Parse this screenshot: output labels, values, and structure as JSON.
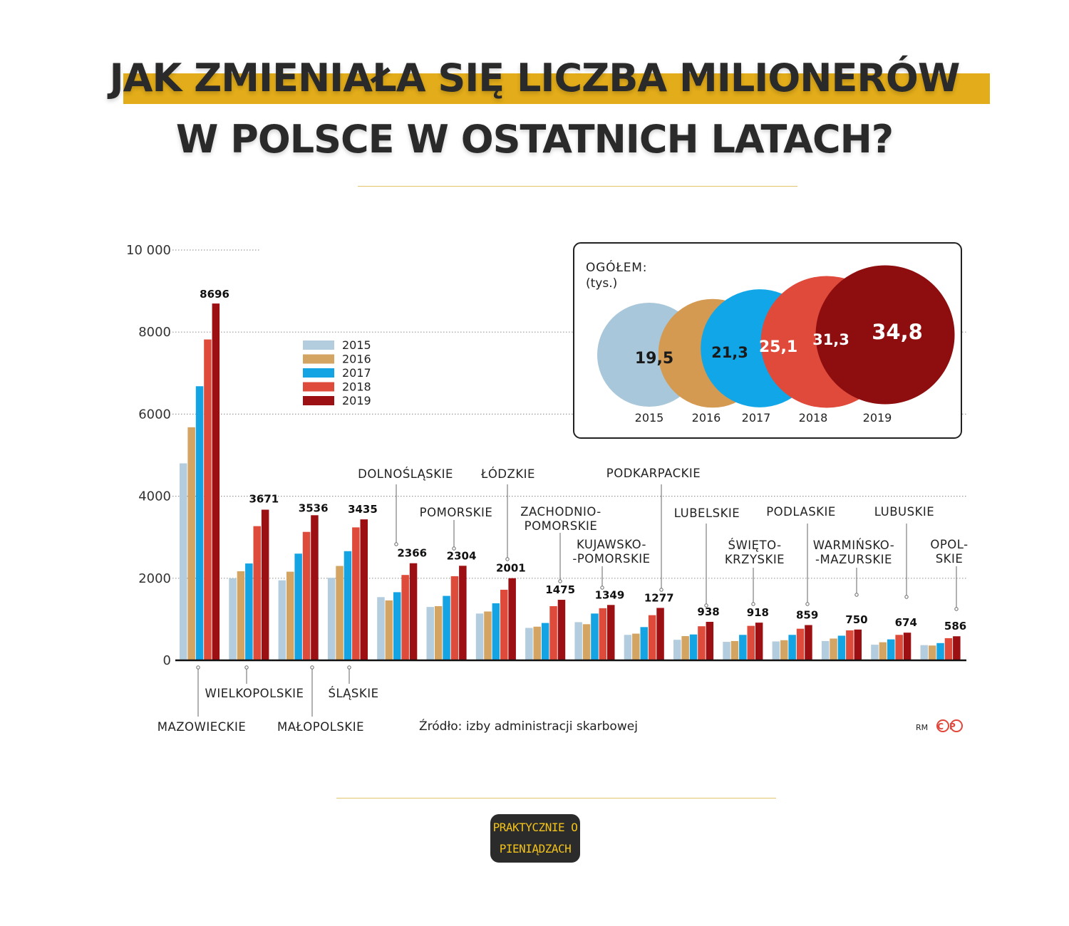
{
  "page": {
    "title_line1": "JAK ZMIENIAŁA SIĘ LICZBA MILIONERÓW",
    "title_line2": "W POLSCE W OSTATNICH LATACH?",
    "logo_line1": "PRAKTYCZNIE O",
    "logo_line2": "PIENIĄDZACH"
  },
  "chart_data": [
    {
      "type": "bar",
      "ylim": [
        0,
        10000
      ],
      "yticks": [
        {
          "value": 0,
          "label": "0"
        },
        {
          "value": 2000,
          "label": "2000"
        },
        {
          "value": 4000,
          "label": "4000"
        },
        {
          "value": 6000,
          "label": "6000"
        },
        {
          "value": 8000,
          "label": "8000"
        },
        {
          "value": 10000,
          "label": "10 000"
        }
      ],
      "grid": "dotted horizontal",
      "legend_position": "top-left",
      "series_names": [
        "2015",
        "2016",
        "2017",
        "2018",
        "2019"
      ],
      "colors": [
        "#b3cdde",
        "#d4a462",
        "#14a4e3",
        "#df4b3a",
        "#9c0f12"
      ],
      "categories": [
        {
          "label": [
            "MAZOWIECKIE"
          ],
          "values": [
            4800,
            5680,
            6680,
            7820,
            8696
          ],
          "value_label": "8696"
        },
        {
          "label": [
            "WIELKOPOLSKIE"
          ],
          "values": [
            2000,
            2170,
            2360,
            3270,
            3671
          ],
          "value_label": "3671"
        },
        {
          "label": [
            "MAŁOPOLSKIE"
          ],
          "values": [
            1950,
            2160,
            2600,
            3130,
            3536
          ],
          "value_label": "3536"
        },
        {
          "label": [
            "ŚLĄSKIE"
          ],
          "values": [
            2010,
            2300,
            2660,
            3240,
            3435
          ],
          "value_label": "3435"
        },
        {
          "label": [
            "DOLNOŚLĄSKIE"
          ],
          "values": [
            1540,
            1460,
            1660,
            2080,
            2366
          ],
          "value_label": "2366"
        },
        {
          "label": [
            "POMORSKIE"
          ],
          "values": [
            1300,
            1320,
            1570,
            2050,
            2304
          ],
          "value_label": "2304"
        },
        {
          "label": [
            "ŁÓDZKIE"
          ],
          "values": [
            1140,
            1190,
            1390,
            1720,
            2001
          ],
          "value_label": "2001"
        },
        {
          "label": [
            "ZACHODNIO-",
            "POMORSKIE"
          ],
          "values": [
            790,
            820,
            910,
            1320,
            1475
          ],
          "value_label": "1475"
        },
        {
          "label": [
            "KUJAWSKO-",
            "-POMORSKIE"
          ],
          "values": [
            930,
            880,
            1140,
            1270,
            1349
          ],
          "value_label": "1349"
        },
        {
          "label": [
            "PODKARPACKIE"
          ],
          "values": [
            620,
            650,
            810,
            1100,
            1277
          ],
          "value_label": "1277"
        },
        {
          "label": [
            "LUBELSKIE"
          ],
          "values": [
            500,
            590,
            630,
            830,
            938
          ],
          "value_label": "938"
        },
        {
          "label": [
            "ŚWIĘTO-",
            "KRZYSKIE"
          ],
          "values": [
            450,
            470,
            620,
            840,
            918
          ],
          "value_label": "918"
        },
        {
          "label": [
            "PODLASKIE"
          ],
          "values": [
            460,
            490,
            620,
            770,
            859
          ],
          "value_label": "859"
        },
        {
          "label": [
            "WARMIŃSKO-",
            "-MAZURSKIE"
          ],
          "values": [
            470,
            530,
            600,
            730,
            750
          ],
          "value_label": "750"
        },
        {
          "label": [
            "LUBUSKIE"
          ],
          "values": [
            380,
            440,
            510,
            620,
            674
          ],
          "value_label": "674"
        },
        {
          "label": [
            "OPOL-",
            "SKIE"
          ],
          "values": [
            370,
            360,
            420,
            540,
            586
          ],
          "value_label": "586"
        }
      ],
      "source": "Źródło: izby administracji skarbowej",
      "credit": "RM",
      "credit_logo": "CP"
    },
    {
      "type": "bubble",
      "title_line1": "OGÓŁEM:",
      "title_line2": "(tys.)",
      "points": [
        {
          "year": "2015",
          "value": 19.5,
          "label": "19,5"
        },
        {
          "year": "2016",
          "value": 21.3,
          "label": "21,3"
        },
        {
          "year": "2017",
          "value": 25.1,
          "label": "25,1"
        },
        {
          "year": "2018",
          "value": 31.3,
          "label": "31,3"
        },
        {
          "year": "2019",
          "value": 34.8,
          "label": "34,8"
        }
      ]
    }
  ]
}
